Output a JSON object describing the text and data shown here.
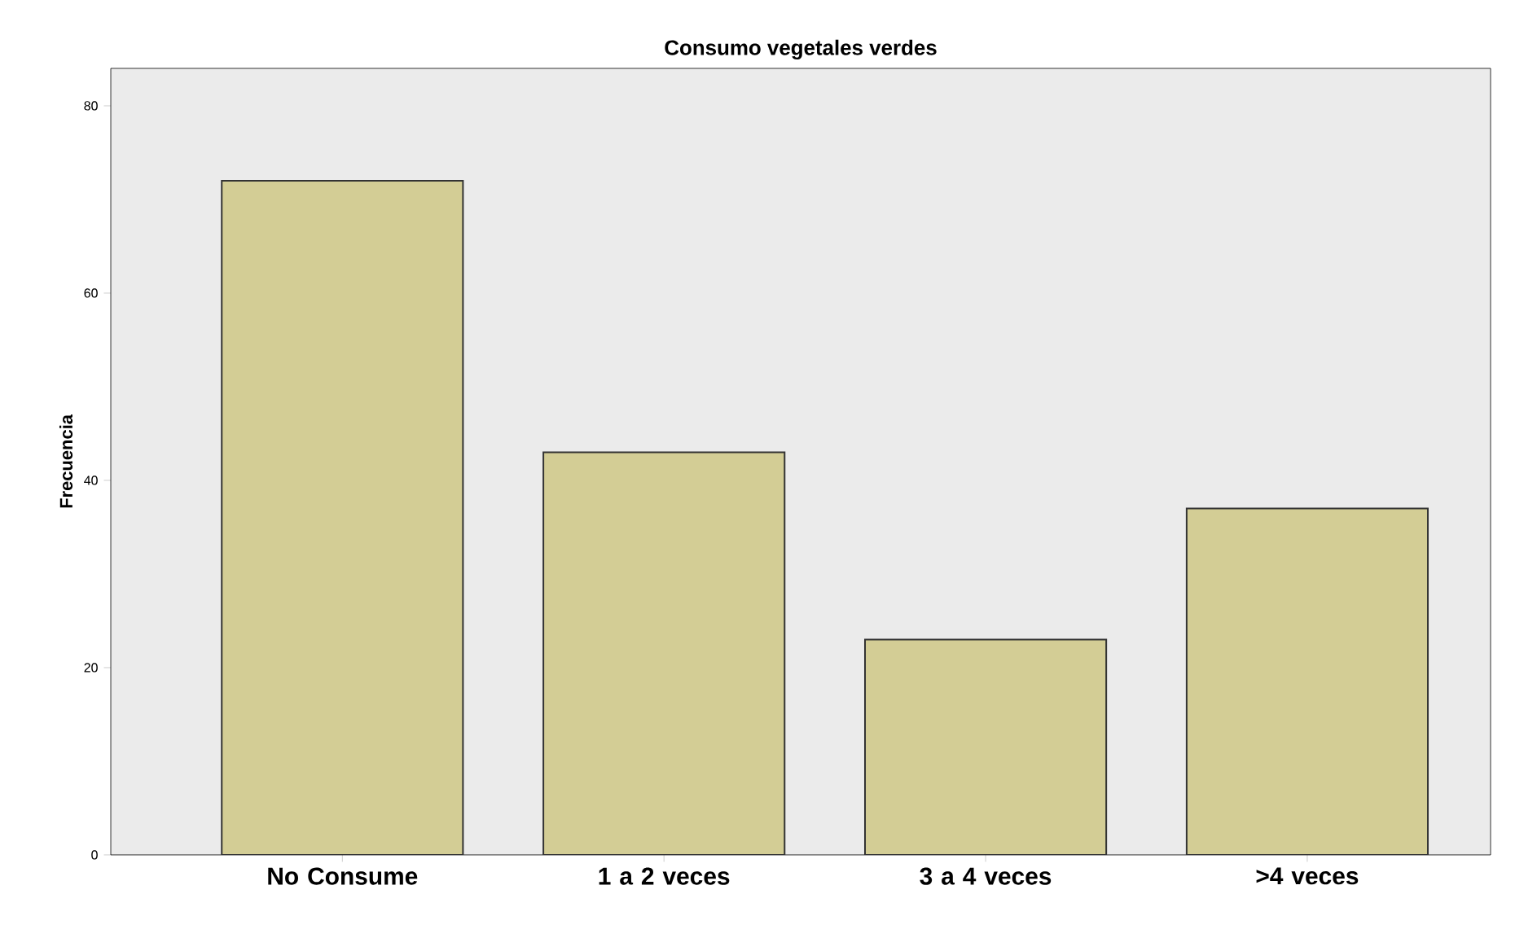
{
  "chart_data": {
    "type": "bar",
    "title": "Consumo vegetales verdes",
    "ylabel": "Frecuencia",
    "categories": [
      "No Consume",
      "1 a 2 veces",
      "3 a 4 veces",
      ">4 veces"
    ],
    "values": [
      72,
      43,
      23,
      37
    ],
    "color": "#d3cd95",
    "ylim": [
      0,
      84
    ],
    "yticks": [
      0,
      20,
      40,
      60,
      80
    ],
    "grid": false
  }
}
